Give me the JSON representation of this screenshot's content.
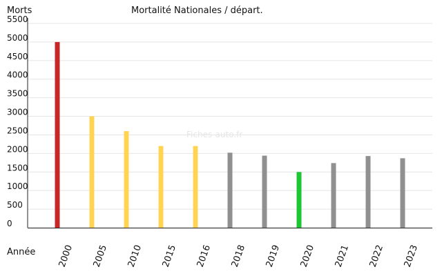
{
  "chart_data": {
    "type": "bar",
    "title": "Mortalité Nationales / départ.",
    "ylabel": "Morts",
    "xlabel": "Année",
    "watermark": "Fiches-auto.fr",
    "categories": [
      "2000",
      "2005",
      "2010",
      "2015",
      "2016",
      "2018",
      "2019",
      "2020",
      "2021",
      "2022",
      "2023"
    ],
    "values": [
      5000,
      3000,
      2600,
      2200,
      2200,
      2020,
      1940,
      1500,
      1740,
      1930,
      1870
    ],
    "bar_colors": [
      "#c62828",
      "#ffd454",
      "#ffd454",
      "#ffd454",
      "#ffd454",
      "#909090",
      "#909090",
      "#1cc733",
      "#909090",
      "#909090",
      "#909090"
    ],
    "yticks": [
      "0",
      "500",
      "1000",
      "1500",
      "2000",
      "2500",
      "3000",
      "3500",
      "4000",
      "4500",
      "5000",
      "5500"
    ],
    "ylim": [
      0,
      5500
    ],
    "grid": true
  }
}
